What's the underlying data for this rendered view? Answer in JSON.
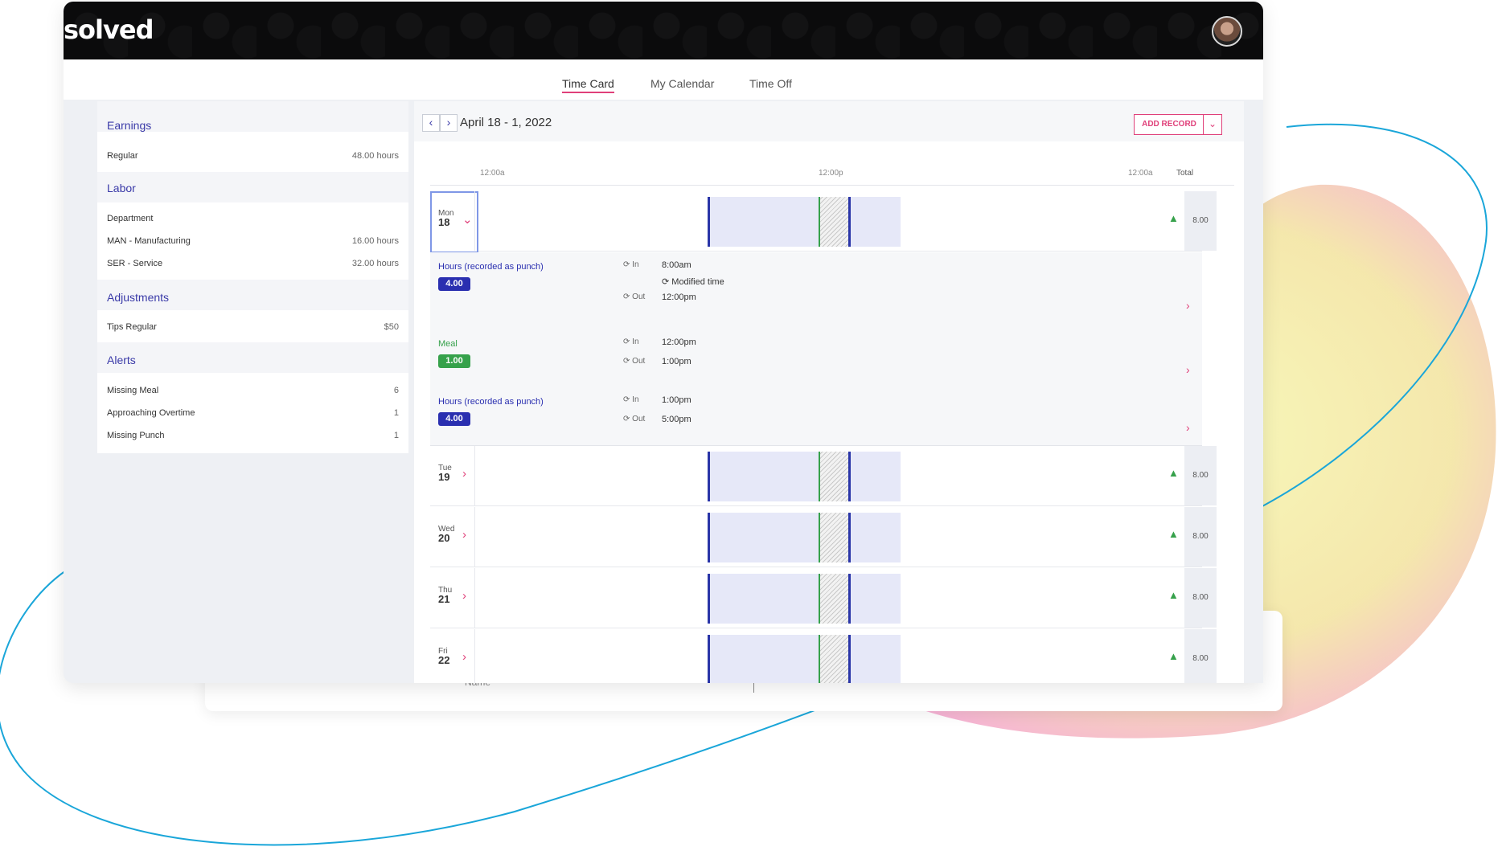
{
  "brand": {
    "logo": "solved"
  },
  "tabs": [
    {
      "label": "Time Card",
      "active": true
    },
    {
      "label": "My Calendar",
      "active": false
    },
    {
      "label": "Time Off",
      "active": false
    }
  ],
  "sidebar": {
    "earnings": {
      "title": "Earnings",
      "rows": [
        {
          "label": "Regular",
          "value": "48.00 hours"
        }
      ]
    },
    "labor": {
      "title": "Labor",
      "rows": [
        {
          "label": "Department",
          "value": ""
        },
        {
          "label": "MAN - Manufacturing",
          "value": "16.00 hours"
        },
        {
          "label": "SER - Service",
          "value": "32.00 hours"
        }
      ]
    },
    "adjustments": {
      "title": "Adjustments",
      "rows": [
        {
          "label": "Tips Regular",
          "value": "$50"
        }
      ]
    },
    "alerts": {
      "title": "Alerts",
      "rows": [
        {
          "label": "Missing Meal",
          "value": "6"
        },
        {
          "label": "Approaching Overtime",
          "value": "1"
        },
        {
          "label": "Missing Punch",
          "value": "1"
        }
      ]
    }
  },
  "toolbar": {
    "prev": "‹",
    "next": "›",
    "date_range": "April 18 - 1, 2022",
    "add_record": "ADD RECORD",
    "add_record_dropdown": "⌄"
  },
  "timeline": {
    "labels": [
      "12:00a",
      "12:00p",
      "12:00a"
    ],
    "total_label": "Total"
  },
  "days": [
    {
      "dow": "Mon",
      "num": "18",
      "total": "8.00",
      "expanded": true
    },
    {
      "dow": "Tue",
      "num": "19",
      "total": "8.00"
    },
    {
      "dow": "Wed",
      "num": "20",
      "total": "8.00"
    },
    {
      "dow": "Thu",
      "num": "21",
      "total": "8.00"
    },
    {
      "dow": "Fri",
      "num": "22",
      "total": "8.00"
    }
  ],
  "details": [
    {
      "title": "Hours (recorded as punch)",
      "badge": "4.00",
      "color": "#2a2fb0",
      "in_label": "In",
      "in": "8:00am",
      "note": "Modified time",
      "out_label": "Out",
      "out": "12:00pm"
    },
    {
      "title": "Meal",
      "badge": "1.00",
      "color": "#36a14b",
      "in_label": "In",
      "in": "12:00pm",
      "out_label": "Out",
      "out": "1:00pm"
    },
    {
      "title": "Hours (recorded as punch)",
      "badge": "4.00",
      "color": "#2a2fb0",
      "in_label": "In",
      "in": "1:00pm",
      "out_label": "Out",
      "out": "5:00pm"
    }
  ],
  "behind": {
    "column_label": "Name"
  },
  "colors": {
    "accent": "#e0407a",
    "primary": "#3a3aa8",
    "meal": "#36a14b"
  }
}
